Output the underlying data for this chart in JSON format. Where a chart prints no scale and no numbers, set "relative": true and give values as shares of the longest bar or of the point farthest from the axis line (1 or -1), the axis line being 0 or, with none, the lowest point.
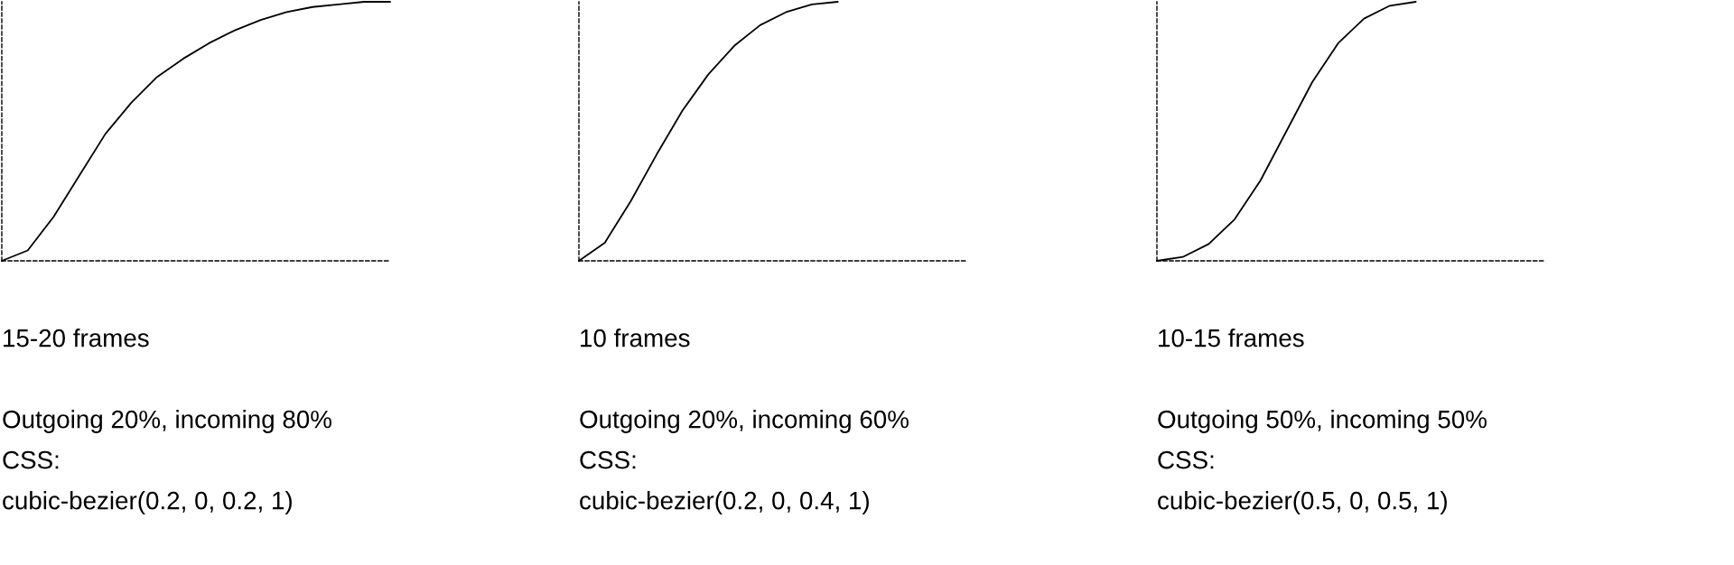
{
  "chart_data": [
    {
      "type": "line",
      "relative": true,
      "categories": [
        null,
        null,
        null,
        null,
        null,
        null,
        null,
        null,
        null,
        null,
        null,
        null,
        null,
        null,
        null,
        null
      ],
      "series": [
        {
          "color": "#000000",
          "values": [
            0,
            0.04,
            0.17,
            0.33,
            0.49,
            0.61,
            0.71,
            0.78,
            0.84,
            0.89,
            0.93,
            0.96,
            0.98,
            0.99,
            1.0,
            1
          ]
        }
      ],
      "annotations": [
        "15-20 frames",
        "Outgoing 20%, incoming 80%",
        "CSS:",
        "cubic-bezier(0.2, 0, 0.2, 1)"
      ]
    },
    {
      "type": "line",
      "relative": true,
      "categories": [
        null,
        null,
        null,
        null,
        null,
        null,
        null,
        null,
        null,
        null,
        null,
        null,
        null,
        null,
        null,
        null
      ],
      "series": [
        {
          "color": "#000000",
          "values": [
            0,
            0.07,
            0.23,
            0.41,
            0.58,
            0.72,
            0.83,
            0.91,
            0.96,
            0.99,
            1,
            null,
            null,
            null,
            null,
            null
          ]
        }
      ],
      "annotations": [
        "10 frames",
        "Outgoing 20%, incoming 60%",
        "CSS:",
        "cubic-bezier(0.2, 0, 0.4, 1)"
      ]
    },
    {
      "type": "line",
      "relative": true,
      "categories": [
        null,
        null,
        null,
        null,
        null,
        null,
        null,
        null,
        null,
        null,
        null,
        null,
        null,
        null,
        null,
        null
      ],
      "series": [
        {
          "color": "#000000",
          "values": [
            0,
            0.015,
            0.065,
            0.16,
            0.31,
            0.5,
            0.69,
            0.84,
            0.935,
            0.985,
            1,
            null,
            null,
            null,
            null,
            null
          ]
        }
      ],
      "annotations": [
        "10-15 frames",
        "Outgoing 50%, incoming 50%",
        "CSS:",
        "cubic-bezier(0.5, 0, 0.5, 1)"
      ]
    }
  ]
}
